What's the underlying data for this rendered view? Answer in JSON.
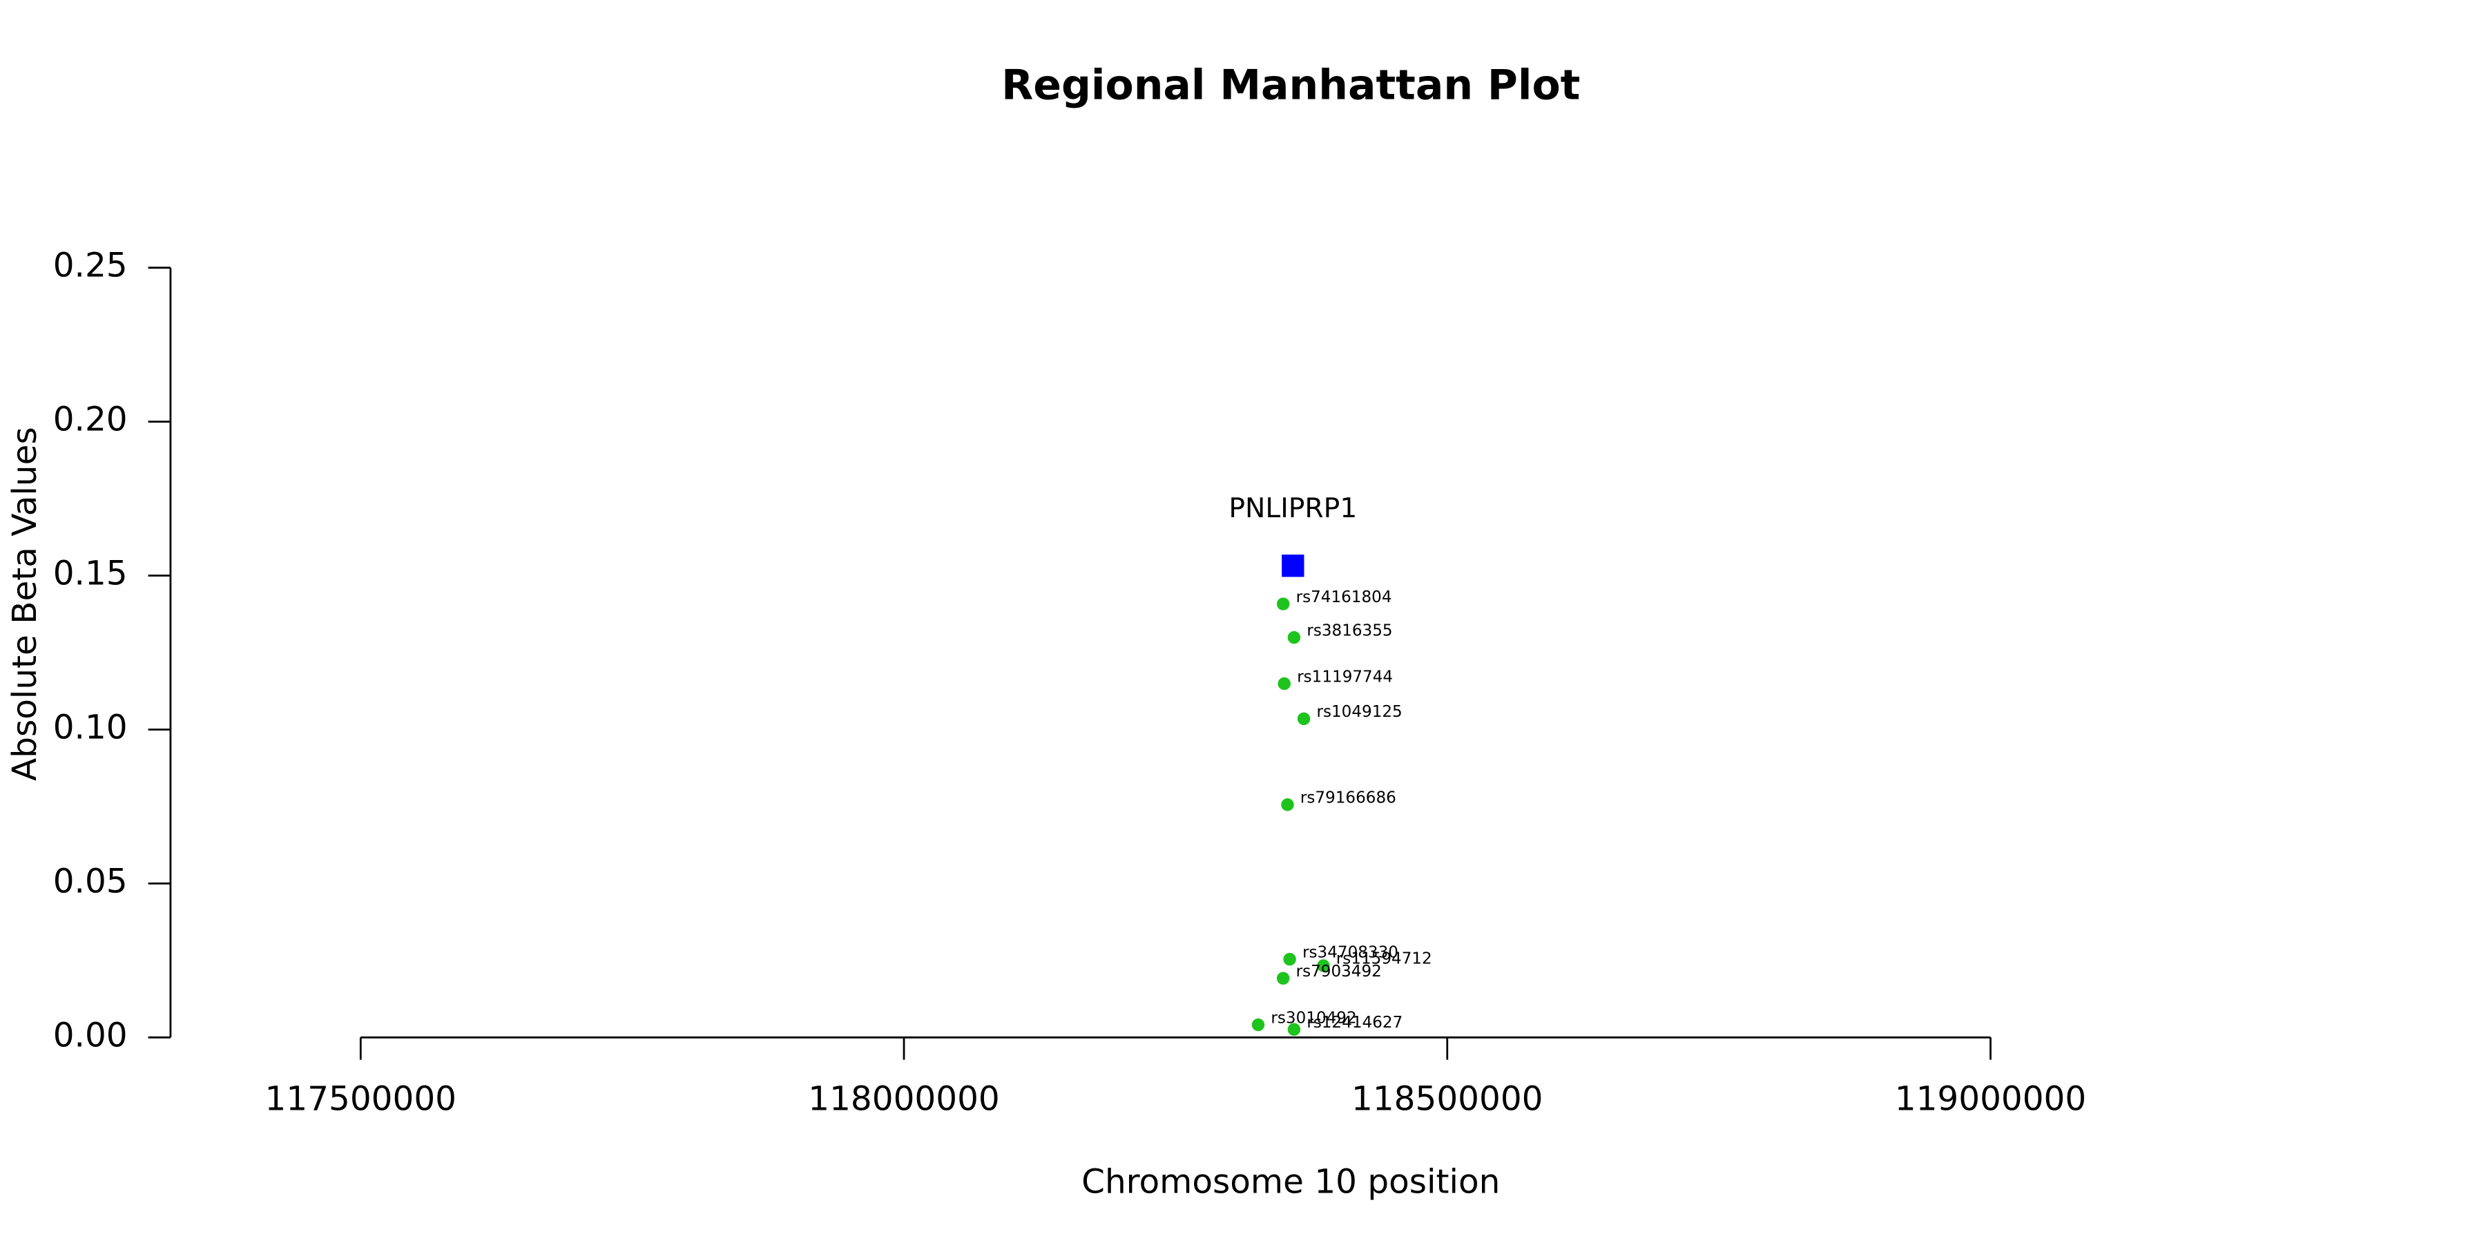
{
  "chart_data": {
    "type": "scatter",
    "title": "Regional Manhattan Plot",
    "x_label": "Chromosome 10 position",
    "y_label": "Absolute Beta Values",
    "xlim": [
      117325000,
      119412000
    ],
    "ylim": [
      0,
      0.25
    ],
    "xticks": [
      117500000,
      118000000,
      118500000,
      119000000
    ],
    "yticks": [
      {
        "value": 0,
        "label": "0.00"
      },
      0.05,
      {
        "value": 0.1,
        "label": "0.10"
      },
      0.15,
      {
        "value": 0.2,
        "label": "0.20"
      },
      0.25
    ],
    "genes": {
      "color": "#0000ff",
      "points": [
        {
          "label": "PNLIPRP1",
          "x": 118358000,
          "y": 0.1532
        }
      ]
    },
    "snps": {
      "color": "#1ec31e",
      "points": [
        {
          "label": "rs74161804",
          "x": 118349000,
          "y": 0.1408
        },
        {
          "label": "rs3816355",
          "x": 118359000,
          "y": 0.1299
        },
        {
          "label": "rs11197744",
          "x": 118350000,
          "y": 0.1149
        },
        {
          "label": "rs1049125",
          "x": 118368000,
          "y": 0.1035
        },
        {
          "label": "rs79166686",
          "x": 118353000,
          "y": 0.0756
        },
        {
          "label": "rs34708330",
          "x": 118355000,
          "y": 0.0254
        },
        {
          "label": "rs11594712",
          "x": 118386000,
          "y": 0.0233
        },
        {
          "label": "rs7903492",
          "x": 118349000,
          "y": 0.0192
        },
        {
          "label": "rs3010492",
          "x": 118326000,
          "y": 0.0041
        },
        {
          "label": "rs12414627",
          "x": 118359000,
          "y": 0.0026
        }
      ]
    }
  }
}
